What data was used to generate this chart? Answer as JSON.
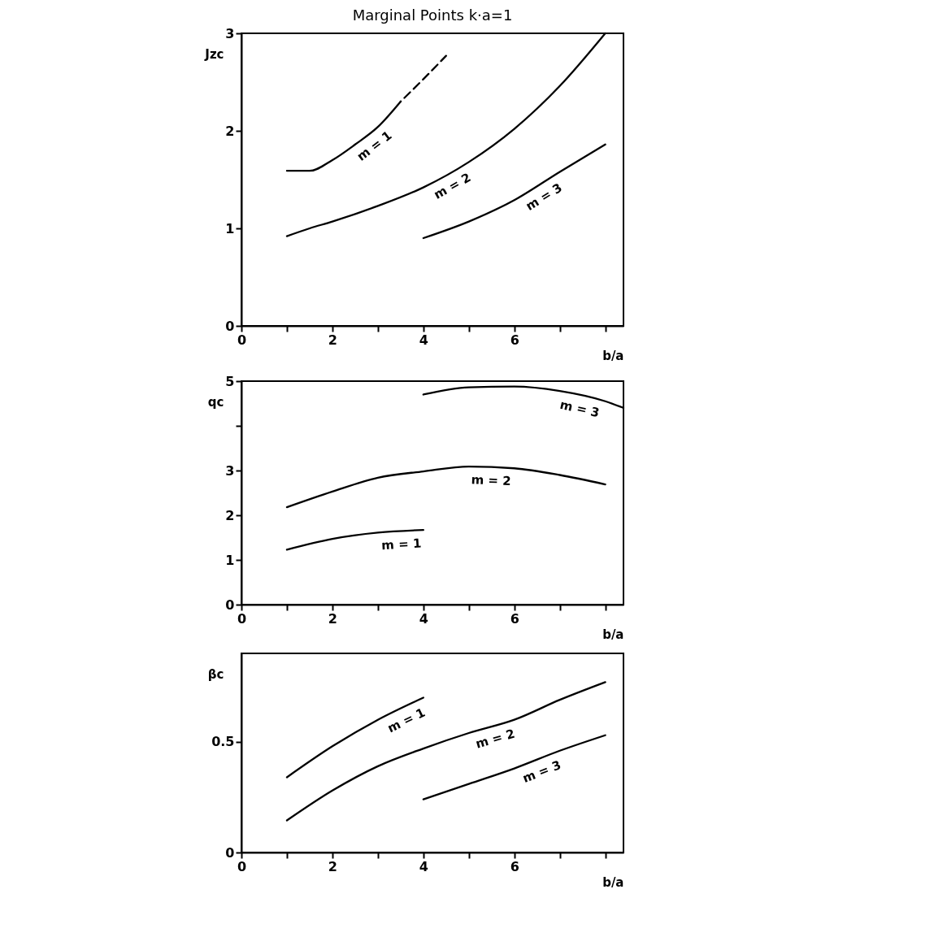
{
  "chart_data": [
    {
      "type": "line",
      "title": "Marginal Points k·a=1",
      "xlabel": "b/a",
      "ylabel": "Jzc",
      "xlim": [
        0,
        8.4
      ],
      "ylim": [
        0,
        3
      ],
      "xticks": [
        0,
        {
          "value": 1,
          "label": null
        },
        2,
        {
          "value": 3,
          "label": null
        },
        4,
        {
          "value": 5,
          "label": null
        },
        6,
        {
          "value": 7,
          "label": null
        },
        {
          "value": 8,
          "label": null
        }
      ],
      "yticks": [
        0,
        1,
        2,
        3
      ],
      "grid": false,
      "marker": "none",
      "series": [
        {
          "name": "m = 1",
          "color": "#000000",
          "line_style": "solid",
          "x": [
            1,
            1.5,
            2,
            2.5,
            3,
            3.5
          ],
          "values": [
            1.59,
            1.59,
            1.7,
            1.86,
            2.04,
            2.3
          ]
        },
        {
          "color": "#000000",
          "line_style": "dashed",
          "x": [
            3.5,
            4,
            4.5
          ],
          "values": [
            2.3,
            2.53,
            2.77
          ]
        },
        {
          "name": "m = 2",
          "color": "#000000",
          "line_style": "solid",
          "x": [
            1,
            1.5,
            2,
            3,
            4,
            5,
            6,
            7,
            8
          ],
          "values": [
            0.92,
            1.0,
            1.07,
            1.23,
            1.42,
            1.68,
            2.02,
            2.46,
            3.0
          ]
        },
        {
          "name": "m = 3",
          "color": "#000000",
          "line_style": "solid",
          "x": [
            4,
            5,
            6,
            7,
            8
          ],
          "values": [
            0.9,
            1.07,
            1.29,
            1.58,
            1.86
          ]
        }
      ]
    },
    {
      "type": "line",
      "xlabel": "b/a",
      "ylabel": "qc",
      "xlim": [
        0,
        8.4
      ],
      "ylim": [
        0,
        5
      ],
      "xticks": [
        0,
        {
          "value": 1,
          "label": null
        },
        2,
        {
          "value": 3,
          "label": null
        },
        4,
        {
          "value": 5,
          "label": null
        },
        6,
        {
          "value": 7,
          "label": null
        },
        {
          "value": 8,
          "label": null
        }
      ],
      "yticks": [
        0,
        1,
        2,
        3,
        {
          "value": 4,
          "label": null
        },
        5
      ],
      "grid": false,
      "marker": "none",
      "series": [
        {
          "name": "m = 1",
          "color": "#000000",
          "line_style": "solid",
          "x": [
            1,
            2,
            3,
            4
          ],
          "values": [
            1.23,
            1.47,
            1.61,
            1.67
          ]
        },
        {
          "name": "m = 2",
          "color": "#000000",
          "line_style": "solid",
          "x": [
            1,
            2,
            3,
            4,
            5,
            6,
            7,
            8
          ],
          "values": [
            2.18,
            2.53,
            2.84,
            2.98,
            3.09,
            3.05,
            2.9,
            2.69
          ]
        },
        {
          "name": "m = 3",
          "color": "#000000",
          "line_style": "solid",
          "x": [
            4,
            5,
            6,
            7,
            8,
            8.4
          ],
          "values": [
            4.7,
            4.86,
            4.88,
            4.78,
            4.55,
            4.4
          ]
        }
      ]
    },
    {
      "type": "line",
      "xlabel": "b/a",
      "ylabel": "βc",
      "xlim": [
        0,
        8.4
      ],
      "ylim": [
        0,
        0.9
      ],
      "xticks": [
        0,
        {
          "value": 1,
          "label": null
        },
        2,
        {
          "value": 3,
          "label": null
        },
        4,
        {
          "value": 5,
          "label": null
        },
        6,
        {
          "value": 7,
          "label": null
        },
        {
          "value": 8,
          "label": null
        }
      ],
      "yticks": [
        0,
        0.5
      ],
      "grid": false,
      "marker": "none",
      "series": [
        {
          "name": "m = 1",
          "color": "#000000",
          "line_style": "solid",
          "x": [
            1,
            2,
            3,
            4
          ],
          "values": [
            0.34,
            0.48,
            0.6,
            0.7
          ]
        },
        {
          "name": "m = 2",
          "color": "#000000",
          "line_style": "solid",
          "x": [
            1,
            2,
            3,
            4,
            5,
            6,
            7,
            8
          ],
          "values": [
            0.145,
            0.28,
            0.39,
            0.47,
            0.54,
            0.6,
            0.69,
            0.77
          ]
        },
        {
          "name": "m = 3",
          "color": "#000000",
          "line_style": "solid",
          "x": [
            4,
            5,
            6,
            7,
            8
          ],
          "values": [
            0.24,
            0.31,
            0.38,
            0.46,
            0.53
          ]
        }
      ]
    }
  ]
}
